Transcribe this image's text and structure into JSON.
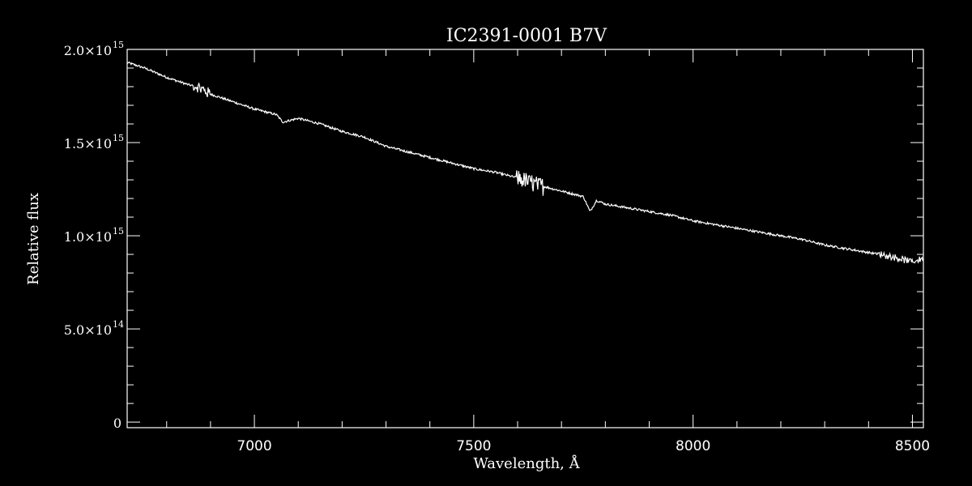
{
  "chart_data": {
    "type": "line",
    "title": "IC2391-0001   B7V",
    "xlabel": "Wavelength, Å",
    "ylabel": "Relative flux",
    "xlim": [
      6710,
      8525
    ],
    "ylim": [
      -30000000000000.0,
      2000000000000000.0
    ],
    "x_major_ticks": [
      7000,
      7500,
      8000,
      8500
    ],
    "x_minor_step": 100,
    "y_major_ticks": [
      {
        "value": 0,
        "mantissa": "0",
        "exponent": ""
      },
      {
        "value": 500000000000000.0,
        "mantissa": "5.0×10",
        "exponent": "14"
      },
      {
        "value": 1000000000000000.0,
        "mantissa": "1.0×10",
        "exponent": "15"
      },
      {
        "value": 1500000000000000.0,
        "mantissa": "1.5×10",
        "exponent": "15"
      },
      {
        "value": 2000000000000000.0,
        "mantissa": "2.0×10",
        "exponent": "15"
      }
    ],
    "y_minor_step": 100000000000000.0,
    "grid": false,
    "colors": {
      "background": "#000000",
      "line": "#ffffff",
      "axes": "#ffffff"
    },
    "series": [
      {
        "x": [
          6710,
          6750,
          6800,
          6850,
          6870,
          6900,
          6950,
          7000,
          7050,
          7065,
          7100,
          7150,
          7200,
          7250,
          7300,
          7350,
          7400,
          7450,
          7500,
          7550,
          7600,
          7650,
          7700,
          7750,
          7765,
          7780,
          7800,
          7850,
          7900,
          7950,
          8000,
          8050,
          8100,
          8150,
          8200,
          8250,
          8300,
          8350,
          8400,
          8450,
          8500,
          8525
        ],
        "y": [
          1930000000000000.0,
          1900000000000000.0,
          1850000000000000.0,
          1810000000000000.0,
          1800000000000000.0,
          1760000000000000.0,
          1720000000000000.0,
          1680000000000000.0,
          1650000000000000.0,
          1610000000000000.0,
          1630000000000000.0,
          1600000000000000.0,
          1560000000000000.0,
          1530000000000000.0,
          1480000000000000.0,
          1450000000000000.0,
          1420000000000000.0,
          1390000000000000.0,
          1360000000000000.0,
          1340000000000000.0,
          1310000000000000.0,
          1270000000000000.0,
          1240000000000000.0,
          1210000000000000.0,
          1130000000000000.0,
          1190000000000000.0,
          1170000000000000.0,
          1150000000000000.0,
          1130000000000000.0,
          1110000000000000.0,
          1080000000000000.0,
          1060000000000000.0,
          1040000000000000.0,
          1020000000000000.0,
          1000000000000000.0,
          980000000000000.0,
          950000000000000.0,
          930000000000000.0,
          910000000000000.0,
          890000000000000.0,
          860000000000000.0,
          880000000000000.0
        ]
      }
    ]
  }
}
